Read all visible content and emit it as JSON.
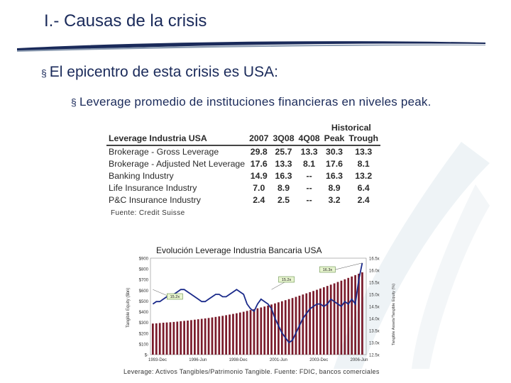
{
  "slide": {
    "title": "I.- Causas de la crisis",
    "bullet_main": "El epicentro de esta crisis es USA:",
    "bullet_sub": "Leverage promedio de instituciones financieras en niveles peak.",
    "bullet_marker": "§"
  },
  "table": {
    "group_header": "Historical",
    "columns": [
      "Leverage Industria USA",
      "2007",
      "3Q08",
      "4Q08",
      "Peak",
      "Trough"
    ],
    "rows": [
      [
        "Brokerage - Gross Leverage",
        "29.8",
        "25.7",
        "13.3",
        "30.3",
        "13.3"
      ],
      [
        "Brokerage - Adjusted Net Leverage",
        "17.6",
        "13.3",
        "8.1",
        "17.6",
        "8.1"
      ],
      [
        "Banking Industry",
        "14.9",
        "16.3",
        "--",
        "16.3",
        "13.2"
      ],
      [
        "Life Insurance Industry",
        "7.0",
        "8.9",
        "--",
        "8.9",
        "6.4"
      ],
      [
        "P&C Insurance Industry",
        "2.4",
        "2.5",
        "--",
        "3.2",
        "2.4"
      ]
    ],
    "source": "Fuente: Credit Suisse"
  },
  "chart_data": {
    "type": "bar",
    "title": "Evolución Leverage Industria Bancaria USA",
    "ylabel": "Tangible Equity ($bn)",
    "y2label": "Tangible Assets/Tangible Equity (%)",
    "ylim": [
      0,
      900
    ],
    "y2lim": [
      12.5,
      16.5
    ],
    "yticks": [
      "$900",
      "$800",
      "$700",
      "$600",
      "$500",
      "$400",
      "$300",
      "$200",
      "$100",
      "$-"
    ],
    "y2ticks": [
      "16.5x",
      "16.0x",
      "15.5x",
      "15.0x",
      "14.5x",
      "14.0x",
      "13.5x",
      "13.0x",
      "12.5x"
    ],
    "xticks": [
      "1993-Dec",
      "1996-Jun",
      "1998-Dec",
      "2001-Jun",
      "2003-Dec",
      "2006-Jun"
    ],
    "annotations": [
      "16.3x",
      "15.2x",
      "15.2x"
    ],
    "bars_equity": [
      290,
      292,
      295,
      298,
      300,
      302,
      305,
      308,
      312,
      315,
      318,
      322,
      326,
      330,
      334,
      338,
      342,
      347,
      352,
      357,
      362,
      368,
      374,
      380,
      386,
      393,
      400,
      408,
      416,
      424,
      432,
      440,
      449,
      458,
      468,
      478,
      488,
      498,
      508,
      518,
      528,
      539,
      550,
      561,
      572,
      583,
      594,
      605,
      617,
      629,
      641,
      653,
      665,
      678,
      690,
      703,
      716,
      729,
      742,
      755,
      768
    ],
    "line_leverage": [
      14.6,
      14.7,
      14.7,
      14.8,
      14.9,
      15.0,
      15.0,
      15.1,
      15.2,
      15.2,
      15.1,
      15.0,
      14.9,
      14.8,
      14.7,
      14.7,
      14.8,
      14.9,
      15.0,
      15.0,
      14.9,
      14.9,
      15.0,
      15.1,
      15.2,
      15.1,
      15.0,
      14.6,
      14.4,
      14.3,
      14.6,
      14.8,
      14.7,
      14.6,
      14.4,
      14.0,
      13.7,
      13.4,
      13.2,
      13.0,
      13.1,
      13.4,
      13.7,
      14.0,
      14.2,
      14.4,
      14.5,
      14.6,
      14.6,
      14.5,
      14.6,
      14.8,
      14.7,
      14.6,
      14.5,
      14.7,
      14.6,
      14.8,
      14.6,
      15.6,
      16.3
    ],
    "source": "Leverage: Activos Tangibles/Patrimonio Tangible. Fuente: FDIC, bancos comerciales"
  },
  "colors": {
    "title": "#1a2a5a",
    "bar": "#7a1a2a",
    "line": "#1a2a8a",
    "annotation_bg": "#e8f5d0"
  }
}
